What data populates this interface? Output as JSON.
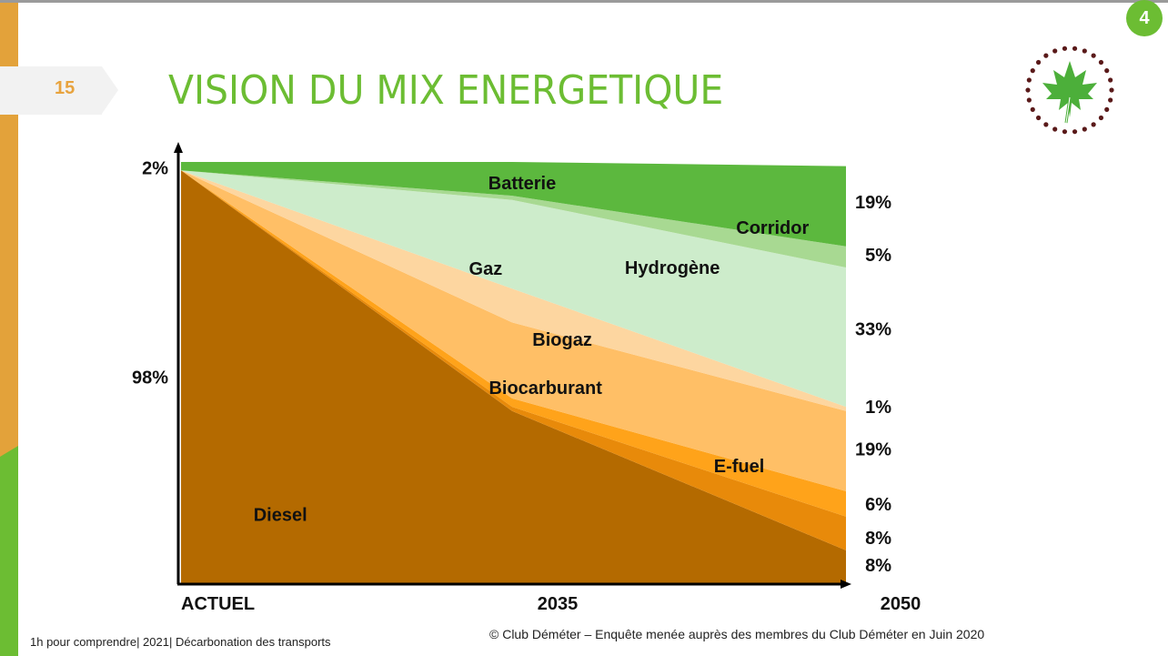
{
  "slide": {
    "page_number": "15",
    "title": "VISION DU MIX ENERGETIQUE",
    "badge": "4",
    "footer_left": "1h pour comprendre| 2021| Décarbonation des transports",
    "footer_right": "© Club Déméter – Enquête menée auprès des membres du Club Déméter en Juin 2020"
  },
  "logo": {
    "icon": "maple-leaf-in-dotted-circle",
    "leaf_color": "#4caf3a",
    "dot_color": "#5a1a1a"
  },
  "chart_data": {
    "type": "area",
    "stacked": true,
    "categories": [
      "ACTUEL",
      "2035",
      "2050"
    ],
    "ylim": [
      0,
      100
    ],
    "series": [
      {
        "name": "Diesel",
        "values": [
          98,
          41,
          8
        ],
        "color": "#b46a00"
      },
      {
        "name": "Biocarburant",
        "values": [
          0,
          1,
          8
        ],
        "color": "#e88a0a"
      },
      {
        "name": "E-fuel",
        "values": [
          0,
          2,
          6
        ],
        "color": "#ffa31a"
      },
      {
        "name": "Biogaz",
        "values": [
          0,
          18,
          19
        ],
        "color": "#ffbf66"
      },
      {
        "name": "Gaz",
        "values": [
          0,
          8,
          1
        ],
        "color": "#fdd6a0"
      },
      {
        "name": "Hydrogène",
        "values": [
          0,
          21,
          33
        ],
        "color": "#cdeccb"
      },
      {
        "name": "Corridor",
        "values": [
          0,
          1,
          5
        ],
        "color": "#a8d992"
      },
      {
        "name": "Batterie",
        "values": [
          2,
          8,
          19
        ],
        "color": "#5cb83e"
      }
    ],
    "label_points": [
      {
        "name": "Batterie",
        "x": 1.03,
        "y": 95
      },
      {
        "name": "Corridor",
        "x": 1.78,
        "y": 84.5
      },
      {
        "name": "Hydrogène",
        "x": 1.48,
        "y": 75
      },
      {
        "name": "Gaz",
        "x": 0.92,
        "y": 74.8
      },
      {
        "name": "Biogaz",
        "x": 1.15,
        "y": 58
      },
      {
        "name": "Biocarburant",
        "x": 1.1,
        "y": 46.5
      },
      {
        "name": "E-fuel",
        "x": 1.68,
        "y": 28
      },
      {
        "name": "Diesel",
        "x": 0.3,
        "y": 16.5
      }
    ],
    "left_labels": [
      {
        "text": "2%",
        "y": 98.6
      },
      {
        "text": "98%",
        "y": 49
      }
    ],
    "right_labels": [
      {
        "text": "19%",
        "y": 90.5
      },
      {
        "text": "5%",
        "y": 78
      },
      {
        "text": "33%",
        "y": 60.5
      },
      {
        "text": "1%",
        "y": 42
      },
      {
        "text": "19%",
        "y": 32
      },
      {
        "text": "6%",
        "y": 19
      },
      {
        "text": "8%",
        "y": 11
      },
      {
        "text": "8%",
        "y": 4.5
      }
    ]
  }
}
